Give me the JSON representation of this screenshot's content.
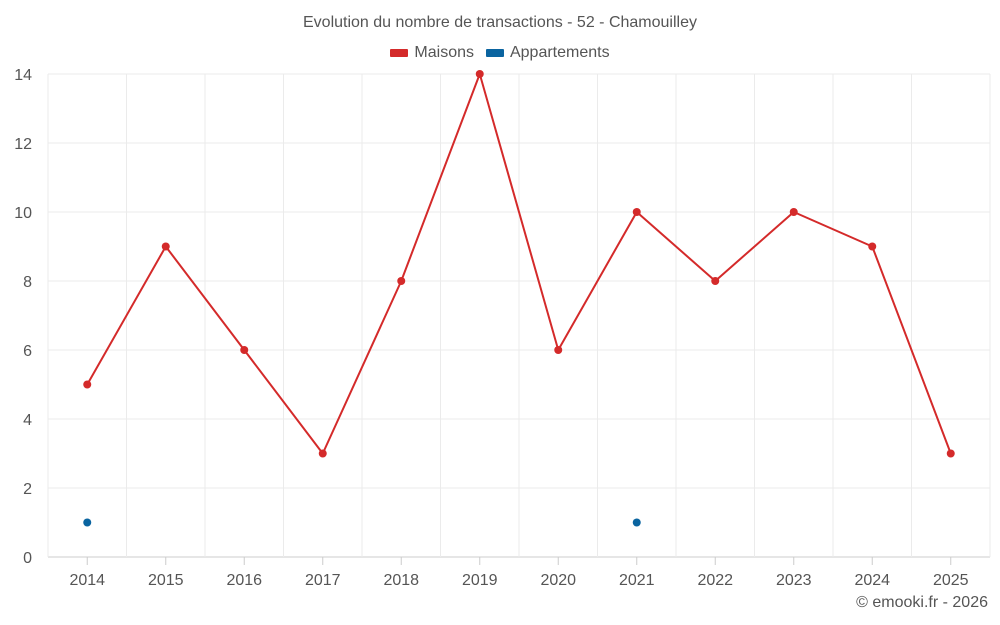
{
  "chart_data": {
    "type": "line",
    "title": "Evolution du nombre de transactions - 52 - Chamouilley",
    "categories": [
      "2014",
      "2015",
      "2016",
      "2017",
      "2018",
      "2019",
      "2020",
      "2021",
      "2022",
      "2023",
      "2024",
      "2025"
    ],
    "yticks": [
      0,
      2,
      4,
      6,
      8,
      10,
      12,
      14
    ],
    "ylim": [
      0,
      14
    ],
    "series": [
      {
        "name": "Maisons",
        "color": "#d42a2a",
        "values": [
          5,
          9,
          6,
          3,
          8,
          14,
          6,
          10,
          8,
          10,
          9,
          3
        ]
      },
      {
        "name": "Appartements",
        "color": "#0a64a0",
        "values": [
          1,
          null,
          null,
          null,
          null,
          null,
          null,
          1,
          null,
          null,
          null,
          null
        ]
      }
    ],
    "legend_position": "top-center",
    "grid": true
  },
  "credit": "© emooki.fr - 2026"
}
